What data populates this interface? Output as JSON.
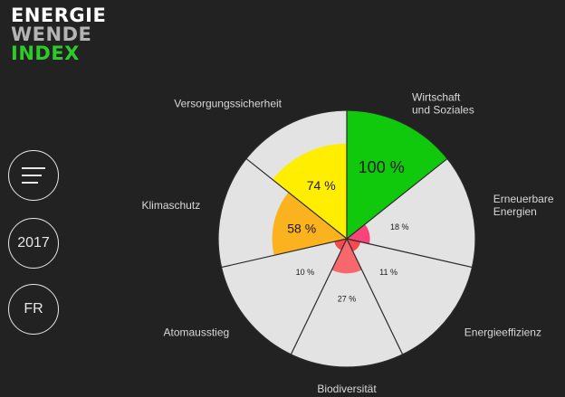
{
  "logo": {
    "line1": "ENERGIE",
    "line2": "WENDE",
    "line3": "INDEX",
    "colors": {
      "line1": "#ffffff",
      "line2": "#b4b4b4",
      "line3": "#2ec92a"
    }
  },
  "nav": {
    "menu_icon": "hamburger-icon",
    "year": "2017",
    "language": "FR"
  },
  "chart_data": {
    "type": "polar-area",
    "max": 100,
    "categories": [
      {
        "label": "Wirtschaft\nund Soziales",
        "value": 100,
        "value_label": "100 %",
        "color": "#11c90c"
      },
      {
        "label": "Erneuerbare\nEnergien",
        "value": 18,
        "value_label": "18 %",
        "color": "#f8447a"
      },
      {
        "label": "Energieeffizienz",
        "value": 11,
        "value_label": "11 %",
        "color": "#f44a50"
      },
      {
        "label": "Biodiversität",
        "value": 27,
        "value_label": "27 %",
        "color": "#f7676c"
      },
      {
        "label": "Atomausstieg",
        "value": 10,
        "value_label": "10 %",
        "color": "#f44a50"
      },
      {
        "label": "Klimaschutz",
        "value": 58,
        "value_label": "58 %",
        "color": "#fab31e"
      },
      {
        "label": "Versorgungssicherheit",
        "value": 74,
        "value_label": "74 %",
        "color": "#ffee00"
      }
    ],
    "background_color": "#e3e3e3",
    "grid_color": "#2a2a2a"
  }
}
